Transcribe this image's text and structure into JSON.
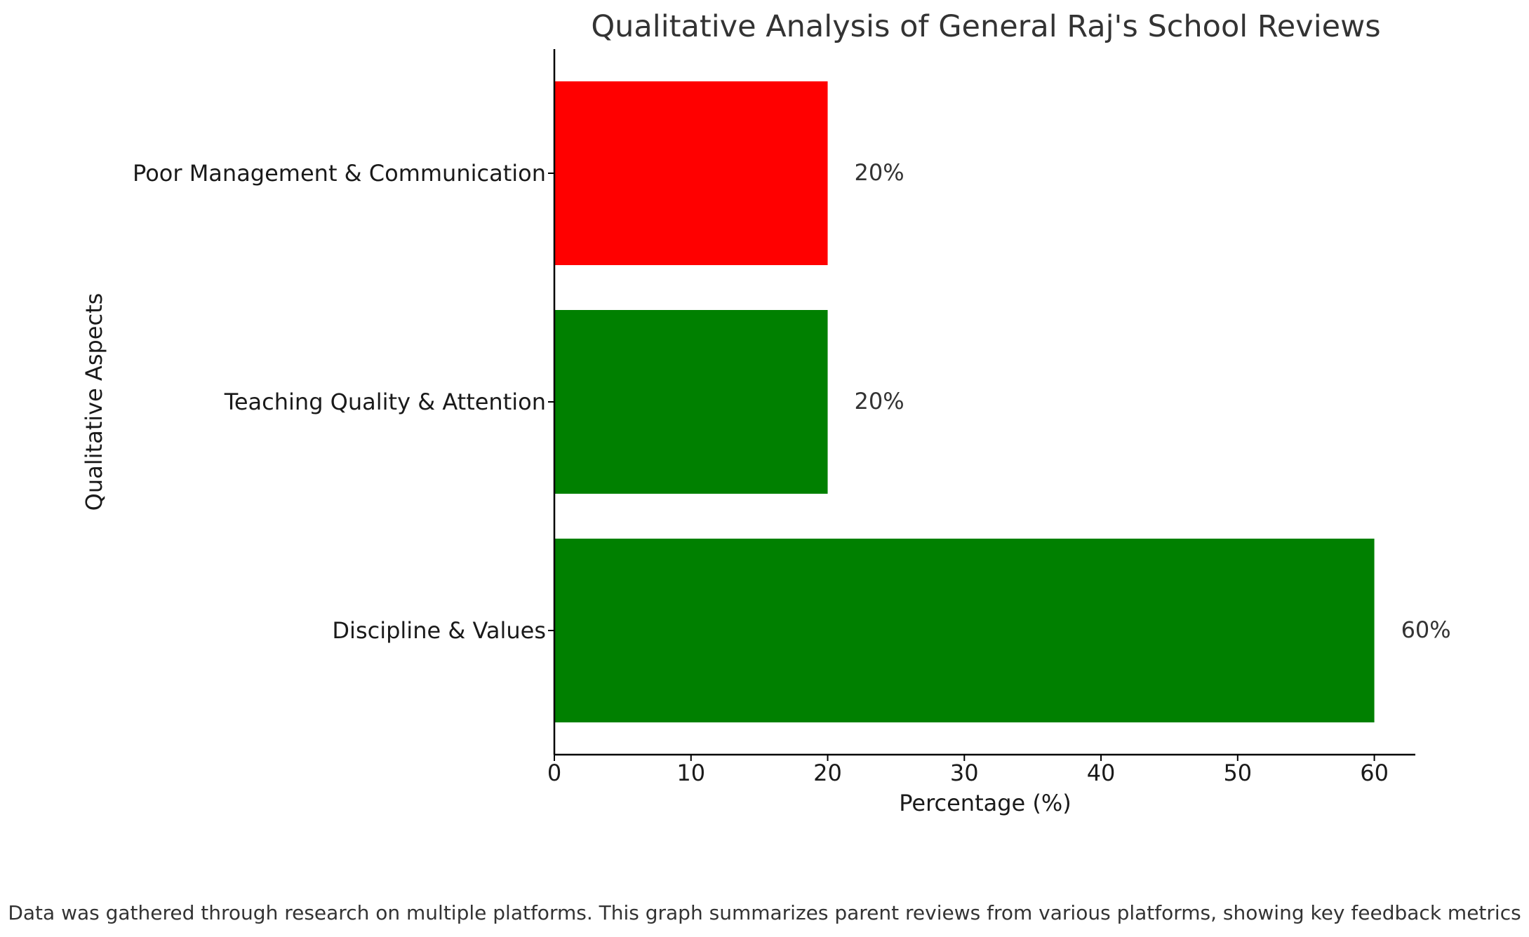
{
  "chart_data": {
    "type": "bar",
    "orientation": "horizontal",
    "title": "Qualitative Analysis of General Raj's School Reviews",
    "xlabel": "Percentage (%)",
    "ylabel": "Qualitative Aspects",
    "categories": [
      "Discipline & Values",
      "Teaching Quality & Attention",
      "Poor Management & Communication"
    ],
    "values": [
      60,
      20,
      20
    ],
    "value_labels": [
      "60%",
      "20%",
      "20%"
    ],
    "colors": [
      "#008000",
      "#008000",
      "#ff0000"
    ],
    "xlim": [
      0,
      63
    ],
    "xticks": [
      0,
      10,
      20,
      30,
      40,
      50,
      60
    ],
    "xtick_labels": [
      "0",
      "10",
      "20",
      "30",
      "40",
      "50",
      "60"
    ],
    "grid": false,
    "legend": "none"
  },
  "caption": "Data was gathered through research on multiple platforms. This graph summarizes parent reviews from various platforms, showing key feedback metrics"
}
